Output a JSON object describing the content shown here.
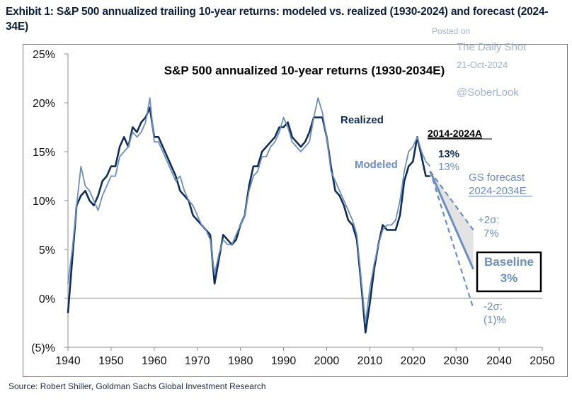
{
  "exhibit_title": "Exhibit 1: S&P 500 annualized trailing 10-year returns: modeled vs. realized (1930-2024) and forecast (2024-34E)",
  "source": "Source: Robert Shiller, Goldman Sachs Global Investment Research",
  "watermark": {
    "posted_on": "Posted on",
    "publisher": "The Daily Shot",
    "date": "21-Oct-2024",
    "handle": "@SoberLook"
  },
  "colors": {
    "realized": "#0f2d57",
    "modeled": "#6b8ebf",
    "forecast_band": "#d9d9d9",
    "text_dark": "#0f2d57",
    "text_light": "#6b8ebf"
  },
  "chart_data": {
    "type": "line",
    "title": "S&P 500 annualized 10-year returns (1930-2034E)",
    "xlim": [
      1940,
      2050
    ],
    "ylim": [
      -5,
      25
    ],
    "x_ticks": [
      1940,
      1950,
      1960,
      1970,
      1980,
      1990,
      2000,
      2010,
      2020,
      2030,
      2040,
      2050
    ],
    "y_ticks": [
      25,
      20,
      15,
      10,
      5,
      0,
      -5
    ],
    "y_tick_labels": [
      "25%",
      "20%",
      "15%",
      "10%",
      "5%",
      "0%",
      "(5)%"
    ],
    "grid": false,
    "series": [
      {
        "name": "Realized",
        "x": [
          1940,
          1941,
          1942,
          1943,
          1944,
          1945,
          1946,
          1947,
          1948,
          1949,
          1950,
          1951,
          1952,
          1953,
          1954,
          1955,
          1956,
          1957,
          1958,
          1959,
          1960,
          1961,
          1962,
          1963,
          1964,
          1965,
          1966,
          1967,
          1968,
          1969,
          1970,
          1971,
          1972,
          1973,
          1974,
          1975,
          1976,
          1977,
          1978,
          1979,
          1980,
          1981,
          1982,
          1983,
          1984,
          1985,
          1986,
          1987,
          1988,
          1989,
          1990,
          1991,
          1992,
          1993,
          1994,
          1995,
          1996,
          1997,
          1998,
          1999,
          2000,
          2001,
          2002,
          2003,
          2004,
          2005,
          2006,
          2007,
          2008,
          2009,
          2010,
          2011,
          2012,
          2013,
          2014,
          2015,
          2016,
          2017,
          2018,
          2019,
          2020,
          2021,
          2022,
          2023,
          2024
        ],
        "y": [
          -1.5,
          4,
          9.5,
          10.5,
          11,
          10,
          9.5,
          10.5,
          12,
          12.5,
          13.5,
          13.5,
          15.5,
          16.5,
          15.5,
          17.5,
          17,
          18,
          18.5,
          19.5,
          16.5,
          16.5,
          15.5,
          14.5,
          13.5,
          12.5,
          11,
          10.5,
          10,
          8.5,
          8,
          7.5,
          7,
          6.5,
          1.5,
          4,
          6.5,
          6,
          5.5,
          6,
          7.5,
          8.5,
          11.5,
          13.5,
          13.5,
          15,
          15.5,
          16,
          16.5,
          17.5,
          17.5,
          18,
          16.5,
          16,
          15.5,
          16,
          17,
          18.5,
          18.5,
          18.5,
          16.5,
          13.5,
          11,
          10.5,
          9.5,
          8,
          7.5,
          6,
          1.5,
          -3.5,
          -0.5,
          3,
          5.5,
          7.5,
          7,
          7,
          7,
          8.5,
          12,
          13.5,
          14,
          16.5,
          14.5,
          12.5,
          12.5
        ]
      },
      {
        "name": "Modeled",
        "x": [
          1940,
          1941,
          1942,
          1943,
          1944,
          1945,
          1946,
          1947,
          1948,
          1949,
          1950,
          1951,
          1952,
          1953,
          1954,
          1955,
          1956,
          1957,
          1958,
          1959,
          1960,
          1961,
          1962,
          1963,
          1964,
          1965,
          1966,
          1967,
          1968,
          1969,
          1970,
          1971,
          1972,
          1973,
          1974,
          1975,
          1976,
          1977,
          1978,
          1979,
          1980,
          1981,
          1982,
          1983,
          1984,
          1985,
          1986,
          1987,
          1988,
          1989,
          1990,
          1991,
          1992,
          1993,
          1994,
          1995,
          1996,
          1997,
          1998,
          1999,
          2000,
          2001,
          2002,
          2003,
          2004,
          2005,
          2006,
          2007,
          2008,
          2009,
          2010,
          2011,
          2012,
          2013,
          2014,
          2015,
          2016,
          2017,
          2018,
          2019,
          2020,
          2021,
          2022,
          2023,
          2024
        ],
        "y": [
          1.5,
          5,
          9.5,
          13.5,
          11.5,
          11,
          10,
          9,
          10.5,
          11.5,
          12.5,
          12.5,
          14.5,
          15,
          15.5,
          17,
          16.5,
          17,
          18,
          20.5,
          16,
          16,
          15,
          14,
          13,
          12,
          12.5,
          11,
          10,
          9.5,
          8.5,
          7.5,
          7,
          6,
          2.5,
          4.5,
          6,
          5.5,
          5.5,
          6.5,
          7.5,
          8.5,
          11,
          12.5,
          13,
          14.5,
          14.5,
          15.5,
          16,
          17,
          18.5,
          17.5,
          16,
          15.5,
          15,
          15.5,
          16,
          18.5,
          20.5,
          19,
          16.5,
          13,
          12,
          11,
          10,
          9,
          8,
          6.5,
          2,
          -2.5,
          1,
          3.5,
          5.5,
          7,
          7.5,
          7.5,
          8,
          10,
          13,
          15,
          15.5,
          16.5,
          15,
          14,
          13.5
        ]
      }
    ],
    "forecast": {
      "name": "GS forecast 2024-2034E",
      "start": {
        "x": 2024,
        "y": 13
      },
      "baseline": {
        "x": 2034,
        "y": 3
      },
      "upper": {
        "x": 2034,
        "y": 7
      },
      "lower": {
        "x": 2034,
        "y": -1
      }
    },
    "annotations": {
      "realized_label": "Realized",
      "modeled_label": "Modeled",
      "period_label": "2014-2024A",
      "realized_value": "13%",
      "modeled_value": "13%",
      "forecast_line1": "GS forecast",
      "forecast_line2": "2024-2034E",
      "upper_line1": "+2σ:",
      "upper_line2": "7%",
      "baseline_line1": "Baseline",
      "baseline_line2": "3%",
      "lower_line1": "-2σ:",
      "lower_line2": "(1)%"
    }
  }
}
